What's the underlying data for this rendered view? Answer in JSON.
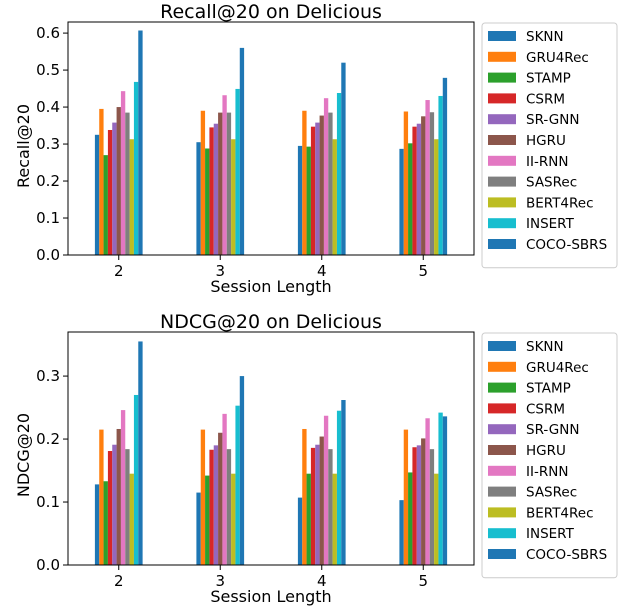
{
  "colors": [
    "#1f77b4",
    "#ff7f0e",
    "#2ca02c",
    "#d62728",
    "#9467bd",
    "#8c564b",
    "#e377c2",
    "#7f7f7f",
    "#bcbd22",
    "#17becf",
    "#1f77b4"
  ],
  "chart_data": [
    {
      "type": "bar",
      "title": "Recall@20 on Delicious",
      "xlabel": "Session Length",
      "ylabel": "Recall@20",
      "ylim": [
        0,
        0.63
      ],
      "yticks": [
        "0.0",
        "0.1",
        "0.2",
        "0.3",
        "0.4",
        "0.5",
        "0.6"
      ],
      "categories": [
        "2",
        "3",
        "4",
        "5"
      ],
      "legend_position": "right",
      "grid": false,
      "series": [
        {
          "name": "SKNN",
          "values": [
            0.325,
            0.305,
            0.295,
            0.287
          ]
        },
        {
          "name": "GRU4Rec",
          "values": [
            0.395,
            0.39,
            0.39,
            0.388
          ]
        },
        {
          "name": "STAMP",
          "values": [
            0.27,
            0.288,
            0.293,
            0.302
          ]
        },
        {
          "name": "CSRM",
          "values": [
            0.338,
            0.345,
            0.347,
            0.347
          ]
        },
        {
          "name": "SR-GNN",
          "values": [
            0.358,
            0.355,
            0.358,
            0.355
          ]
        },
        {
          "name": "HGRU",
          "values": [
            0.4,
            0.385,
            0.377,
            0.375
          ]
        },
        {
          "name": "II-RNN",
          "values": [
            0.443,
            0.432,
            0.424,
            0.419
          ]
        },
        {
          "name": "SASRec",
          "values": [
            0.385,
            0.385,
            0.385,
            0.386
          ]
        },
        {
          "name": "BERT4Rec",
          "values": [
            0.313,
            0.313,
            0.313,
            0.313
          ]
        },
        {
          "name": "INSERT",
          "values": [
            0.468,
            0.449,
            0.438,
            0.43
          ]
        },
        {
          "name": "COCO-SBRS",
          "values": [
            0.607,
            0.56,
            0.52,
            0.479
          ]
        }
      ]
    },
    {
      "type": "bar",
      "title": "NDCG@20 on Delicious",
      "xlabel": "Session Length",
      "ylabel": "NDCG@20",
      "ylim": [
        0,
        0.37
      ],
      "yticks": [
        "0.0",
        "0.1",
        "0.2",
        "0.3"
      ],
      "categories": [
        "2",
        "3",
        "4",
        "5"
      ],
      "legend_position": "right",
      "grid": false,
      "series": [
        {
          "name": "SKNN",
          "values": [
            0.128,
            0.115,
            0.107,
            0.103
          ]
        },
        {
          "name": "GRU4Rec",
          "values": [
            0.215,
            0.215,
            0.216,
            0.215
          ]
        },
        {
          "name": "STAMP",
          "values": [
            0.133,
            0.142,
            0.145,
            0.147
          ]
        },
        {
          "name": "CSRM",
          "values": [
            0.181,
            0.183,
            0.186,
            0.187
          ]
        },
        {
          "name": "SR-GNN",
          "values": [
            0.191,
            0.19,
            0.191,
            0.19
          ]
        },
        {
          "name": "HGRU",
          "values": [
            0.216,
            0.21,
            0.204,
            0.201
          ]
        },
        {
          "name": "II-RNN",
          "values": [
            0.246,
            0.24,
            0.237,
            0.233
          ]
        },
        {
          "name": "SASRec",
          "values": [
            0.184,
            0.184,
            0.184,
            0.184
          ]
        },
        {
          "name": "BERT4Rec",
          "values": [
            0.145,
            0.145,
            0.145,
            0.145
          ]
        },
        {
          "name": "INSERT",
          "values": [
            0.27,
            0.253,
            0.245,
            0.242
          ]
        },
        {
          "name": "COCO-SBRS",
          "values": [
            0.355,
            0.3,
            0.262,
            0.236
          ]
        }
      ]
    }
  ]
}
